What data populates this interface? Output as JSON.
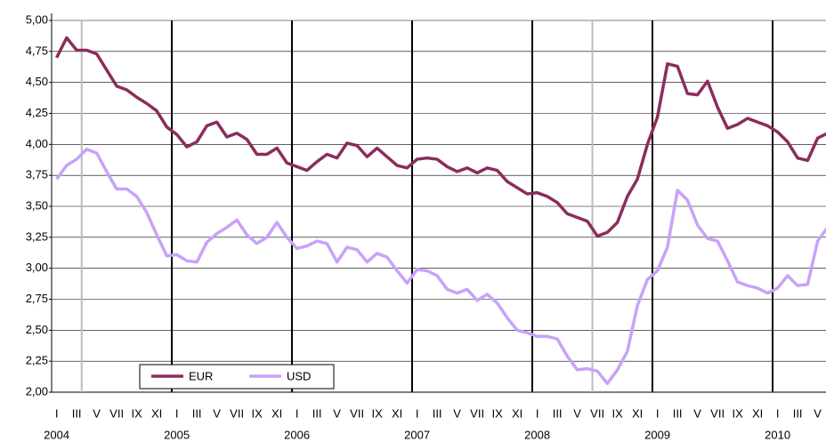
{
  "chart_data": {
    "type": "line",
    "categories": [
      "I",
      null,
      "III",
      null,
      "V",
      null,
      "VII",
      null,
      "IX",
      null,
      "XI",
      null,
      "I",
      null,
      "III",
      null,
      "V",
      null,
      "VII",
      null,
      "IX",
      null,
      "XI",
      null,
      "I",
      null,
      "III",
      null,
      "V",
      null,
      "VII",
      null,
      "IX",
      null,
      "XI",
      null,
      "I",
      null,
      "III",
      null,
      "V",
      null,
      "VII",
      null,
      "IX",
      null,
      "XI",
      null,
      "I",
      null,
      "III",
      null,
      "V",
      null,
      "VII",
      null,
      "IX",
      null,
      "XI",
      null,
      "I",
      null,
      "III",
      null,
      "V",
      null,
      "VII",
      null,
      "IX",
      null,
      "XI",
      null,
      "I",
      null,
      "III",
      null,
      "V",
      null
    ],
    "years": [
      "2004",
      "2005",
      "2006",
      "2007",
      "2008",
      "2009",
      "2010"
    ],
    "series": [
      {
        "name": "EUR",
        "color": "#8b2d5c",
        "values": [
          4.7,
          4.86,
          4.76,
          4.76,
          4.73,
          4.6,
          4.47,
          4.44,
          4.38,
          4.33,
          4.27,
          4.14,
          4.08,
          3.98,
          4.02,
          4.15,
          4.18,
          4.06,
          4.09,
          4.04,
          3.92,
          3.92,
          3.97,
          3.85,
          3.82,
          3.79,
          3.86,
          3.92,
          3.89,
          4.01,
          3.99,
          3.9,
          3.97,
          3.9,
          3.83,
          3.81,
          3.88,
          3.89,
          3.88,
          3.82,
          3.78,
          3.81,
          3.77,
          3.81,
          3.79,
          3.7,
          3.65,
          3.6,
          3.61,
          3.58,
          3.53,
          3.44,
          3.41,
          3.38,
          3.26,
          3.29,
          3.37,
          3.58,
          3.72,
          4.0,
          4.22,
          4.65,
          4.63,
          4.41,
          4.4,
          4.51,
          4.3,
          4.13,
          4.16,
          4.21,
          4.18,
          4.15,
          4.1,
          4.02,
          3.89,
          3.87,
          4.05,
          4.09
        ]
      },
      {
        "name": "USD",
        "color": "#c8a2f8",
        "values": [
          3.72,
          3.83,
          3.88,
          3.96,
          3.93,
          3.78,
          3.64,
          3.64,
          3.58,
          3.45,
          3.27,
          3.1,
          3.11,
          3.06,
          3.05,
          3.21,
          3.28,
          3.33,
          3.39,
          3.27,
          3.2,
          3.25,
          3.37,
          3.25,
          3.16,
          3.18,
          3.22,
          3.2,
          3.05,
          3.17,
          3.15,
          3.05,
          3.12,
          3.09,
          2.98,
          2.88,
          2.99,
          2.98,
          2.94,
          2.83,
          2.8,
          2.83,
          2.74,
          2.79,
          2.72,
          2.6,
          2.5,
          2.48,
          2.45,
          2.45,
          2.43,
          2.29,
          2.18,
          2.19,
          2.17,
          2.07,
          2.18,
          2.33,
          2.7,
          2.91,
          2.98,
          3.17,
          3.63,
          3.55,
          3.35,
          3.24,
          3.22,
          3.06,
          2.89,
          2.86,
          2.84,
          2.8,
          2.84,
          2.94,
          2.86,
          2.87,
          3.22,
          3.33
        ]
      }
    ],
    "ylim": [
      2,
      5
    ],
    "yticks": [
      {
        "value": 2,
        "label": "2,00"
      },
      {
        "value": 2.25,
        "label": "2,25"
      },
      {
        "value": 2.5,
        "label": "2,50"
      },
      {
        "value": 2.75,
        "label": "2,75"
      },
      {
        "value": 3,
        "label": "3,00"
      },
      {
        "value": 3.25,
        "label": "3,25"
      },
      {
        "value": 3.5,
        "label": "3,50"
      },
      {
        "value": 3.75,
        "label": "3,75"
      },
      {
        "value": 4,
        "label": "4,00"
      },
      {
        "value": 4.25,
        "label": "4,25"
      },
      {
        "value": 4.5,
        "label": "4,50"
      },
      {
        "value": 4.75,
        "label": "4,75"
      },
      {
        "value": 5,
        "label": "5,00"
      }
    ],
    "grid": true,
    "vertical_lines": [
      {
        "at": 3,
        "color": "#bbbbbb"
      },
      {
        "at": 54,
        "color": "#bbbbbb"
      }
    ],
    "legend": "lower-left"
  }
}
